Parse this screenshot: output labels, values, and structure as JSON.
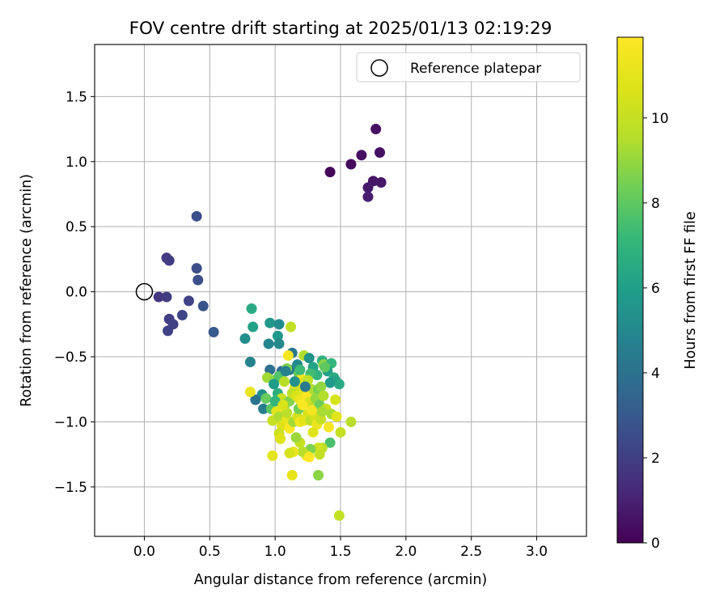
{
  "chart_data": {
    "type": "scatter",
    "title": "FOV centre drift starting at 2025/01/13 02:19:29",
    "xlabel": "Angular distance from reference (arcmin)",
    "ylabel": "Rotation from reference (arcmin)",
    "xlim": [
      -0.38,
      3.38
    ],
    "ylim": [
      -1.88,
      1.9
    ],
    "x_ticks": [
      0.0,
      0.5,
      1.0,
      1.5,
      2.0,
      2.5,
      3.0
    ],
    "x_tick_labels": [
      "0.0",
      "0.5",
      "1.0",
      "1.5",
      "2.0",
      "2.5",
      "3.0"
    ],
    "y_ticks": [
      1.5,
      1.0,
      0.5,
      0.0,
      -0.5,
      -1.0,
      -1.5
    ],
    "y_tick_labels": [
      "1.5",
      "1.0",
      "0.5",
      "0.0",
      "−0.5",
      "−1.0",
      "−1.5"
    ],
    "grid": true,
    "legend": {
      "position": "upper right",
      "entries": [
        {
          "label": "Reference platepar",
          "marker": "open-circle"
        }
      ]
    },
    "reference_point": {
      "x": 0.0,
      "y": 0.0
    },
    "colorbar": {
      "label": "Hours from first FF file",
      "colormap": "viridis",
      "range": [
        0,
        11.9
      ],
      "ticks": [
        0,
        2,
        4,
        6,
        8,
        10
      ],
      "tick_labels": [
        "0",
        "2",
        "4",
        "6",
        "8",
        "10"
      ]
    },
    "points": [
      {
        "x": 1.42,
        "y": 0.92,
        "h": 0.2
      },
      {
        "x": 1.58,
        "y": 0.98,
        "h": 0.3
      },
      {
        "x": 1.66,
        "y": 1.05,
        "h": 0.4
      },
      {
        "x": 1.77,
        "y": 1.25,
        "h": 0.5
      },
      {
        "x": 1.8,
        "y": 1.07,
        "h": 0.5
      },
      {
        "x": 1.75,
        "y": 0.85,
        "h": 0.6
      },
      {
        "x": 1.81,
        "y": 0.84,
        "h": 0.7
      },
      {
        "x": 1.71,
        "y": 0.8,
        "h": 0.8
      },
      {
        "x": 1.71,
        "y": 0.73,
        "h": 0.9
      },
      {
        "x": 0.4,
        "y": 0.58,
        "h": 2.6
      },
      {
        "x": 0.17,
        "y": 0.26,
        "h": 1.8
      },
      {
        "x": 0.19,
        "y": 0.24,
        "h": 1.9
      },
      {
        "x": 0.4,
        "y": 0.18,
        "h": 2.5
      },
      {
        "x": 0.41,
        "y": 0.09,
        "h": 2.6
      },
      {
        "x": 0.11,
        "y": -0.04,
        "h": 1.7
      },
      {
        "x": 0.17,
        "y": -0.04,
        "h": 1.9
      },
      {
        "x": 0.34,
        "y": -0.07,
        "h": 2.2
      },
      {
        "x": 0.45,
        "y": -0.11,
        "h": 2.8
      },
      {
        "x": 0.19,
        "y": -0.21,
        "h": 2.0
      },
      {
        "x": 0.22,
        "y": -0.25,
        "h": 2.1
      },
      {
        "x": 0.29,
        "y": -0.18,
        "h": 2.3
      },
      {
        "x": 0.18,
        "y": -0.3,
        "h": 2.1
      },
      {
        "x": 0.53,
        "y": -0.31,
        "h": 3.0
      },
      {
        "x": 0.82,
        "y": -0.13,
        "h": 6.5
      },
      {
        "x": 0.83,
        "y": -0.27,
        "h": 6.1
      },
      {
        "x": 0.77,
        "y": -0.36,
        "h": 5.3
      },
      {
        "x": 0.96,
        "y": -0.24,
        "h": 5.6
      },
      {
        "x": 1.03,
        "y": -0.25,
        "h": 5.2
      },
      {
        "x": 0.95,
        "y": -0.4,
        "h": 4.9
      },
      {
        "x": 1.02,
        "y": -0.34,
        "h": 5.8
      },
      {
        "x": 1.03,
        "y": -0.4,
        "h": 5.0
      },
      {
        "x": 0.81,
        "y": -0.54,
        "h": 4.8
      },
      {
        "x": 1.12,
        "y": -0.27,
        "h": 9.9
      },
      {
        "x": 1.13,
        "y": -0.47,
        "h": 4.2
      },
      {
        "x": 0.96,
        "y": -0.6,
        "h": 4.0
      },
      {
        "x": 1.05,
        "y": -0.61,
        "h": 3.8
      },
      {
        "x": 1.11,
        "y": -0.6,
        "h": 4.4
      },
      {
        "x": 1.17,
        "y": -0.56,
        "h": 5.1
      },
      {
        "x": 1.22,
        "y": -0.49,
        "h": 9.5
      },
      {
        "x": 1.26,
        "y": -0.51,
        "h": 5.5
      },
      {
        "x": 1.29,
        "y": -0.58,
        "h": 6.2
      },
      {
        "x": 1.36,
        "y": -0.53,
        "h": 6.8
      },
      {
        "x": 1.37,
        "y": -0.56,
        "h": 8.8
      },
      {
        "x": 1.43,
        "y": -0.55,
        "h": 7.1
      },
      {
        "x": 1.4,
        "y": -0.61,
        "h": 6.0
      },
      {
        "x": 1.45,
        "y": -0.66,
        "h": 6.6
      },
      {
        "x": 1.46,
        "y": -0.68,
        "h": 6.3
      },
      {
        "x": 1.49,
        "y": -0.71,
        "h": 6.5
      },
      {
        "x": 1.42,
        "y": -0.7,
        "h": 5.8
      },
      {
        "x": 1.32,
        "y": -0.64,
        "h": 6.9
      },
      {
        "x": 1.27,
        "y": -0.63,
        "h": 7.4
      },
      {
        "x": 1.18,
        "y": -0.63,
        "h": 8.2
      },
      {
        "x": 1.09,
        "y": -0.59,
        "h": 8.6
      },
      {
        "x": 0.94,
        "y": -0.66,
        "h": 9.2
      },
      {
        "x": 0.99,
        "y": -0.68,
        "h": 8.9
      },
      {
        "x": 1.03,
        "y": -0.65,
        "h": 7.7
      },
      {
        "x": 1.07,
        "y": -0.69,
        "h": 9.6
      },
      {
        "x": 1.1,
        "y": -0.49,
        "h": 11.6
      },
      {
        "x": 1.15,
        "y": -0.74,
        "h": 10.4
      },
      {
        "x": 1.2,
        "y": -0.67,
        "h": 11.4
      },
      {
        "x": 1.21,
        "y": -0.7,
        "h": 10.8
      },
      {
        "x": 1.25,
        "y": -0.68,
        "h": 9.9
      },
      {
        "x": 1.28,
        "y": -0.75,
        "h": 9.4
      },
      {
        "x": 1.33,
        "y": -0.75,
        "h": 8.5
      },
      {
        "x": 1.35,
        "y": -0.73,
        "h": 8.9
      },
      {
        "x": 0.99,
        "y": -0.71,
        "h": 5.9
      },
      {
        "x": 1.02,
        "y": -0.78,
        "h": 6.7
      },
      {
        "x": 0.9,
        "y": -0.79,
        "h": 5.3
      },
      {
        "x": 0.85,
        "y": -0.83,
        "h": 4.1
      },
      {
        "x": 0.93,
        "y": -0.82,
        "h": 8.2
      },
      {
        "x": 0.81,
        "y": -0.77,
        "h": 11.2
      },
      {
        "x": 0.91,
        "y": -0.9,
        "h": 4.6
      },
      {
        "x": 0.97,
        "y": -0.9,
        "h": 7.9
      },
      {
        "x": 1.01,
        "y": -0.92,
        "h": 10.9
      },
      {
        "x": 1.07,
        "y": -0.91,
        "h": 11.6
      },
      {
        "x": 1.05,
        "y": -0.82,
        "h": 10.2
      },
      {
        "x": 1.08,
        "y": -0.86,
        "h": 9.1
      },
      {
        "x": 1.11,
        "y": -0.84,
        "h": 8.7
      },
      {
        "x": 1.13,
        "y": -0.78,
        "h": 9.8
      },
      {
        "x": 1.16,
        "y": -0.8,
        "h": 10.6
      },
      {
        "x": 1.19,
        "y": -0.83,
        "h": 11.3
      },
      {
        "x": 1.22,
        "y": -0.77,
        "h": 10.9
      },
      {
        "x": 1.24,
        "y": -0.81,
        "h": 11.7
      },
      {
        "x": 1.26,
        "y": -0.85,
        "h": 10.4
      },
      {
        "x": 1.29,
        "y": -0.89,
        "h": 9.7
      },
      {
        "x": 1.31,
        "y": -0.82,
        "h": 9.0
      },
      {
        "x": 1.34,
        "y": -0.87,
        "h": 8.3
      },
      {
        "x": 1.37,
        "y": -0.8,
        "h": 9.5
      },
      {
        "x": 1.39,
        "y": -0.9,
        "h": 10.2
      },
      {
        "x": 1.43,
        "y": -0.94,
        "h": 9.3
      },
      {
        "x": 1.46,
        "y": -0.83,
        "h": 10.5
      },
      {
        "x": 1.47,
        "y": -0.96,
        "h": 10.9
      },
      {
        "x": 1.5,
        "y": -1.08,
        "h": 10.0
      },
      {
        "x": 1.58,
        "y": -1.0,
        "h": 9.6
      },
      {
        "x": 1.49,
        "y": -1.72,
        "h": 9.9
      },
      {
        "x": 0.98,
        "y": -0.99,
        "h": 10.1
      },
      {
        "x": 1.03,
        "y": -0.96,
        "h": 9.4
      },
      {
        "x": 1.05,
        "y": -1.03,
        "h": 10.7
      },
      {
        "x": 1.09,
        "y": -0.98,
        "h": 11.1
      },
      {
        "x": 1.11,
        "y": -1.05,
        "h": 11.8
      },
      {
        "x": 1.14,
        "y": -1.0,
        "h": 9.2
      },
      {
        "x": 1.17,
        "y": -0.96,
        "h": 10.3
      },
      {
        "x": 1.19,
        "y": -1.0,
        "h": 11.5
      },
      {
        "x": 1.22,
        "y": -0.99,
        "h": 11.0
      },
      {
        "x": 1.25,
        "y": -0.94,
        "h": 10.6
      },
      {
        "x": 1.27,
        "y": -0.99,
        "h": 9.8
      },
      {
        "x": 1.3,
        "y": -0.96,
        "h": 10.4
      },
      {
        "x": 1.32,
        "y": -1.02,
        "h": 11.3
      },
      {
        "x": 1.35,
        "y": -0.98,
        "h": 10.1
      },
      {
        "x": 1.41,
        "y": -1.04,
        "h": 11.7
      },
      {
        "x": 1.42,
        "y": -1.16,
        "h": 7.6
      },
      {
        "x": 1.36,
        "y": -1.2,
        "h": 9.7
      },
      {
        "x": 1.33,
        "y": -1.2,
        "h": 10.3
      },
      {
        "x": 1.29,
        "y": -1.08,
        "h": 10.8
      },
      {
        "x": 1.27,
        "y": -1.21,
        "h": 8.6
      },
      {
        "x": 1.24,
        "y": -1.26,
        "h": 11.4
      },
      {
        "x": 1.21,
        "y": -1.23,
        "h": 9.6
      },
      {
        "x": 1.19,
        "y": -1.16,
        "h": 10.0
      },
      {
        "x": 1.16,
        "y": -1.12,
        "h": 9.1
      },
      {
        "x": 1.14,
        "y": -1.23,
        "h": 11.2
      },
      {
        "x": 1.11,
        "y": -1.24,
        "h": 10.5
      },
      {
        "x": 1.03,
        "y": -1.09,
        "h": 10.2
      },
      {
        "x": 1.04,
        "y": -1.13,
        "h": 10.8
      },
      {
        "x": 0.98,
        "y": -1.26,
        "h": 11.0
      },
      {
        "x": 1.13,
        "y": -1.41,
        "h": 11.1
      },
      {
        "x": 1.33,
        "y": -1.41,
        "h": 8.8
      },
      {
        "x": 1.26,
        "y": -1.27,
        "h": 11.9
      },
      {
        "x": 1.34,
        "y": -1.25,
        "h": 10.0
      },
      {
        "x": 1.08,
        "y": -0.61,
        "h": 4.7
      },
      {
        "x": 1.15,
        "y": -0.69,
        "h": 5.4
      },
      {
        "x": 1.19,
        "y": -0.6,
        "h": 7.3
      },
      {
        "x": 1.23,
        "y": -0.73,
        "h": 4.3
      },
      {
        "x": 1.38,
        "y": -0.58,
        "h": 8.0
      },
      {
        "x": 1.28,
        "y": -0.91,
        "h": 11.6
      },
      {
        "x": 1.18,
        "y": -0.9,
        "h": 8.4
      },
      {
        "x": 1.09,
        "y": -0.93,
        "h": 9.7
      },
      {
        "x": 1.0,
        "y": -0.84,
        "h": 7.0
      },
      {
        "x": 1.06,
        "y": -0.87,
        "h": 10.6
      },
      {
        "x": 1.21,
        "y": -0.87,
        "h": 11.8
      },
      {
        "x": 1.36,
        "y": -0.92,
        "h": 9.3
      }
    ]
  }
}
